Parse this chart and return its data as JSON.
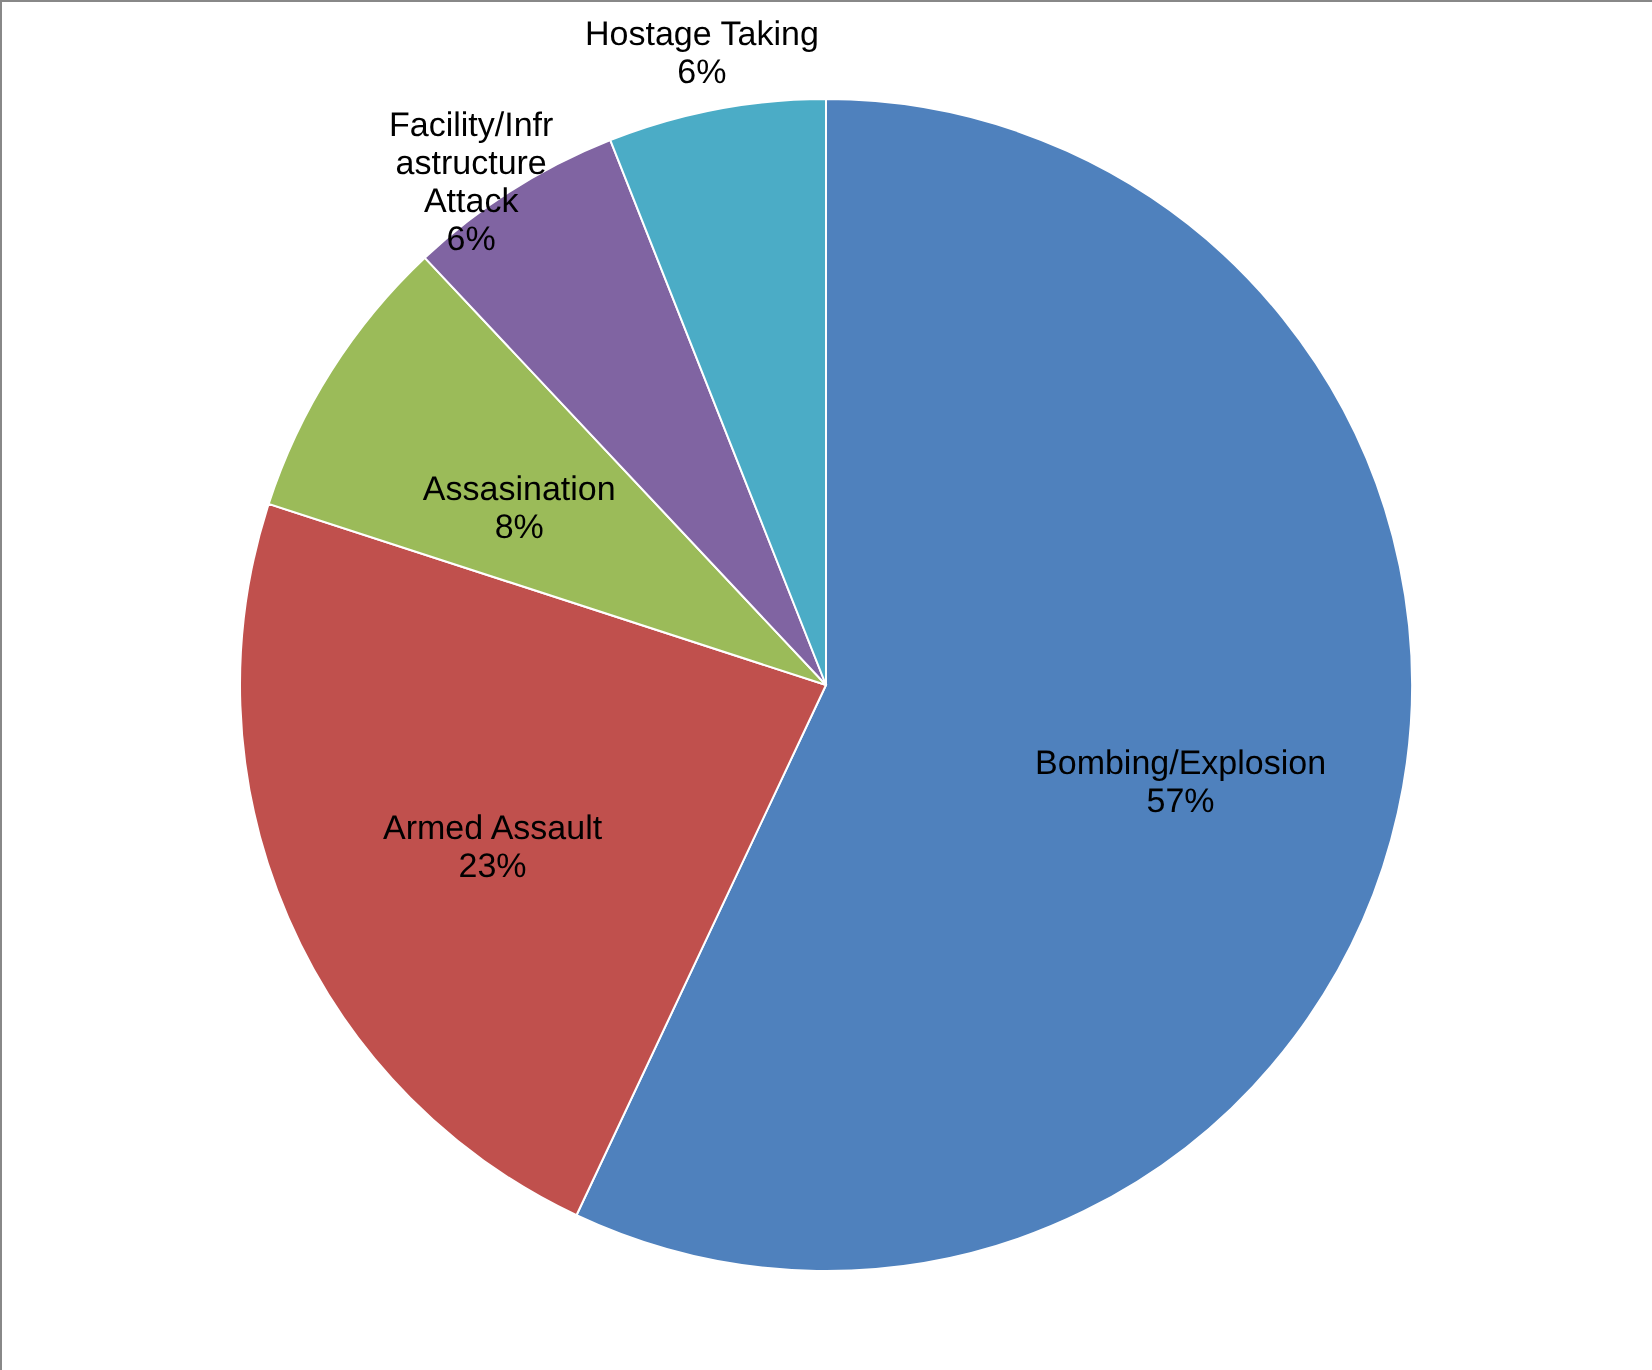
{
  "chart_data": {
    "type": "pie",
    "categories": [
      "Bombing/Explosion",
      "Armed Assault",
      "Assasination",
      "Facility/Infrastructure Attack",
      "Hostage Taking"
    ],
    "values": [
      57,
      23,
      8,
      6,
      6
    ],
    "colors": [
      "#4f81bd",
      "#c0504d",
      "#9bbb59",
      "#8064a2",
      "#4bacc6"
    ],
    "value_labels": [
      "57%",
      "23%",
      "8%",
      "6%",
      "6%"
    ]
  }
}
